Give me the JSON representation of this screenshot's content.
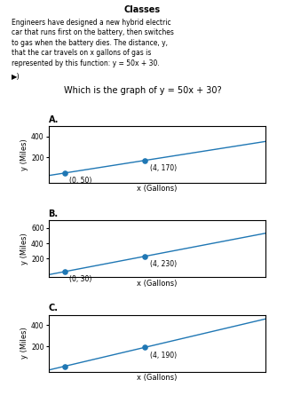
{
  "title": "Which is the graph of y = 50x + 30?",
  "annotations": [
    "Classes",
    "Engineers have designed a new hybrid electric\ncar that runs first on the battery, then switches\nto gas when the battery dies. The distance, y,\nthat the car travels on x gallons of gas is\nrepresented by this function: y = 50x + 30.",
    "▶)"
  ],
  "chart_data": [
    {
      "type": "line",
      "title": "A.",
      "xlabel": "x (Gallons)",
      "ylabel": "y (Miles)",
      "xlim": [
        -0.8,
        10
      ],
      "ylim": [
        -40,
        500
      ],
      "xticks": [],
      "yticks": [
        200,
        400
      ],
      "tick_labels": "y",
      "data_labels": true,
      "series": [
        {
          "type": "line",
          "x": [
            -0.8,
            10
          ],
          "values": [
            26,
            350
          ]
        },
        {
          "type": "scatter",
          "x": [
            0,
            4
          ],
          "values": [
            50,
            170
          ],
          "value_labels": [
            "(0, 50)",
            "(4, 170)"
          ]
        }
      ]
    },
    {
      "type": "line",
      "title": "B.",
      "xlabel": "x (Gallons)",
      "ylabel": "y (Miles)",
      "xlim": [
        -0.8,
        10
      ],
      "ylim": [
        -40,
        700
      ],
      "xticks": [],
      "yticks": [
        200,
        400,
        600
      ],
      "tick_labels": "y",
      "data_labels": true,
      "series": [
        {
          "type": "line",
          "x": [
            -0.8,
            10
          ],
          "values": [
            -10,
            530
          ]
        },
        {
          "type": "scatter",
          "x": [
            0,
            4
          ],
          "values": [
            30,
            230
          ],
          "value_labels": [
            "(0, 30)",
            "(4, 230)"
          ]
        }
      ]
    },
    {
      "type": "line",
      "title": "C.",
      "xlabel": "x (Gallons)",
      "ylabel": "y (Miles)",
      "xlim": [
        -0.8,
        10
      ],
      "ylim": [
        -40,
        500
      ],
      "xticks": [],
      "yticks": [
        200,
        400
      ],
      "tick_labels": "y",
      "data_labels": true,
      "series": [
        {
          "type": "line",
          "x": [
            -0.8,
            10
          ],
          "values": [
            -26,
            460
          ]
        },
        {
          "type": "scatter",
          "x": [
            0,
            4
          ],
          "values": [
            10,
            190
          ],
          "value_labels": [
            null,
            "(4, 190)"
          ]
        }
      ]
    }
  ]
}
